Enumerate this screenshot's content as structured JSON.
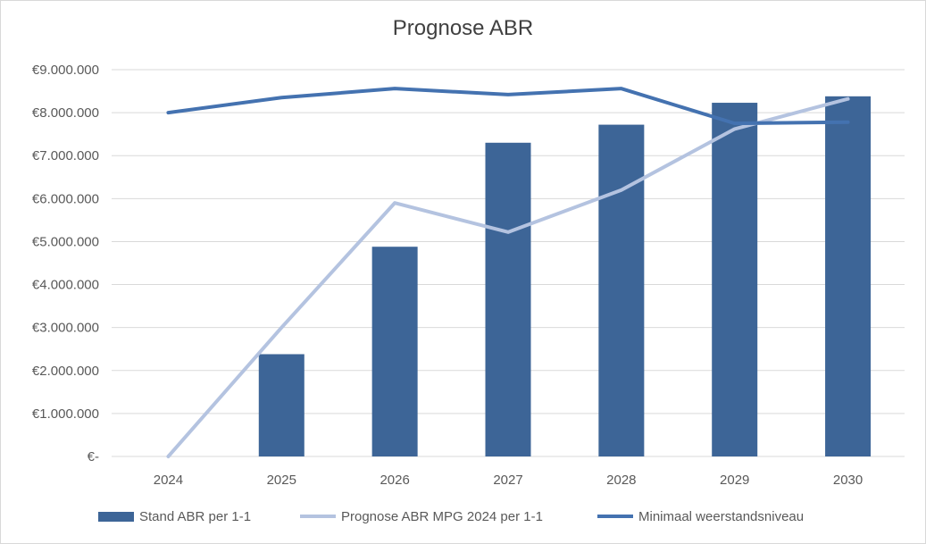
{
  "chart_data": {
    "type": "bar",
    "title": "Prognose ABR",
    "categories": [
      "2024",
      "2025",
      "2026",
      "2027",
      "2028",
      "2029",
      "2030"
    ],
    "y_tick_labels": [
      "€-",
      "€1.000.000",
      "€2.000.000",
      "€3.000.000",
      "€4.000.000",
      "€5.000.000",
      "€6.000.000",
      "€7.000.000",
      "€8.000.000",
      "€9.000.000"
    ],
    "ylim": [
      0,
      9000000
    ],
    "grid": true,
    "legend_position": "bottom",
    "series": [
      {
        "name": "Stand ABR per 1-1",
        "type": "bar",
        "color": "#3d6597",
        "values": [
          0,
          2380000,
          4880000,
          7300000,
          7720000,
          8230000,
          8380000
        ]
      },
      {
        "name": "Prognose ABR MPG 2024 per 1-1",
        "type": "line",
        "color": "#b4c3e0",
        "values": [
          0,
          3000000,
          5900000,
          5220000,
          6200000,
          7620000,
          8320000
        ]
      },
      {
        "name": "Minimaal weerstandsniveau",
        "type": "line",
        "color": "#4472b0",
        "values": [
          8000000,
          8350000,
          8560000,
          8420000,
          8560000,
          7750000,
          7780000
        ]
      }
    ]
  }
}
